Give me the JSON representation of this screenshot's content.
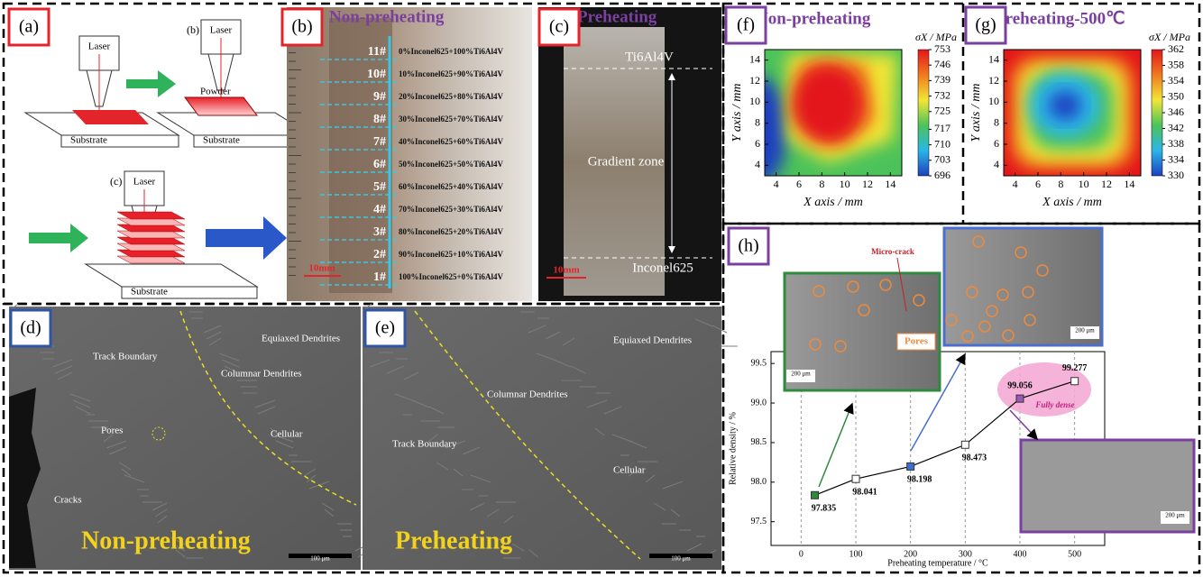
{
  "figure": {
    "a": {
      "label": "(a)",
      "step_b": "(b)",
      "step_c": "(c)",
      "laser": [
        "Laser",
        "Laser",
        "Laser"
      ],
      "powder": "Powder",
      "substrate": [
        "Substrate",
        "Substrate",
        "Substrate"
      ]
    },
    "b": {
      "label": "(b)",
      "title": "Non-preheating",
      "scale": "10mm",
      "layers": [
        {
          "id": "11#",
          "composition": "0%Inconel625+100%Ti6Al4V"
        },
        {
          "id": "10#",
          "composition": "10%Inconel625+90%Ti6Al4V"
        },
        {
          "id": "9#",
          "composition": "20%Inconel625+80%Ti6Al4V"
        },
        {
          "id": "8#",
          "composition": "30%Inconel625+70%Ti6Al4V"
        },
        {
          "id": "7#",
          "composition": "40%Inconel625+60%Ti6Al4V"
        },
        {
          "id": "6#",
          "composition": "50%Inconel625+50%Ti6Al4V"
        },
        {
          "id": "5#",
          "composition": "60%Inconel625+40%Ti6Al4V"
        },
        {
          "id": "4#",
          "composition": "70%Inconel625+30%Ti6Al4V"
        },
        {
          "id": "3#",
          "composition": "80%Inconel625+20%Ti6Al4V"
        },
        {
          "id": "2#",
          "composition": "90%Inconel625+10%Ti6Al4V"
        },
        {
          "id": "1#",
          "composition": "100%Inconel625+0%Ti6Al4V"
        }
      ]
    },
    "c": {
      "label": "(c)",
      "title": "Preheating",
      "top": "Ti6Al4V",
      "middle": "Gradient zone",
      "bottom": "Inconel625",
      "scale": "10mm"
    },
    "d": {
      "label": "(d)",
      "caption": "Non-preheating",
      "scale": "100 μm",
      "annotations": [
        "Equiaxed Dendrites",
        "Track Boundary",
        "Columnar Dendrites",
        "Pores",
        "Cellular",
        "Cracks"
      ]
    },
    "e": {
      "label": "(e)",
      "caption": "Preheating",
      "scale": "100 μm",
      "annotations": [
        "Equiaxed Dendrites",
        "Columnar Dendrites",
        "Track Boundary",
        "Cellular"
      ]
    }
  },
  "chart_data": [
    {
      "type": "heatmap",
      "label": "(f)",
      "title": "Non-preheating",
      "xlabel": "X axis / mm",
      "ylabel": "Y axis / mm",
      "colorbar_label": "σX / MPa",
      "xlim": [
        3,
        15
      ],
      "ylim": [
        3,
        15
      ],
      "xticks": [
        4,
        6,
        8,
        10,
        12,
        14
      ],
      "yticks": [
        4,
        6,
        8,
        10,
        12,
        14
      ],
      "clim": [
        696,
        753
      ],
      "cticks": [
        696,
        703,
        710,
        717,
        725,
        732,
        739,
        746,
        753
      ],
      "colors": [
        "#1f3fbf",
        "#29b6e8",
        "#4cc35a",
        "#f2e636",
        "#f07a1e",
        "#e3161b"
      ]
    },
    {
      "type": "heatmap",
      "label": "(g)",
      "title": "Preheating-500℃",
      "xlabel": "X axis / mm",
      "ylabel": "Y axis / mm",
      "colorbar_label": "σX / MPa",
      "xlim": [
        3,
        15
      ],
      "ylim": [
        3,
        15
      ],
      "xticks": [
        4,
        6,
        8,
        10,
        12,
        14
      ],
      "yticks": [
        4,
        6,
        8,
        10,
        12,
        14
      ],
      "clim": [
        330,
        362
      ],
      "cticks": [
        330,
        334,
        338,
        342,
        346,
        350,
        354,
        358,
        362
      ],
      "colors": [
        "#1f3fbf",
        "#29b6e8",
        "#4cc35a",
        "#f2e636",
        "#f07a1e",
        "#e3161b"
      ]
    },
    {
      "type": "line",
      "label": "(h)",
      "xlabel": "Preheating temperature / °C",
      "ylabel": "Relative density / %",
      "x": [
        25,
        100,
        200,
        300,
        400,
        500
      ],
      "series": [
        {
          "name": null,
          "color": "#000000",
          "values": [
            97.835,
            98.041,
            98.198,
            98.473,
            99.056,
            99.277
          ],
          "marker_colors": [
            "#2e8b3e",
            "#ffffff",
            "#3b6fd1",
            "#ffffff",
            "#9b59b6",
            "#ffffff"
          ]
        }
      ],
      "xlim": [
        -55,
        555
      ],
      "ylim": [
        97.2,
        99.65
      ],
      "xticks": [
        0,
        100,
        200,
        300,
        400,
        500
      ],
      "yticks": [
        97.5,
        {
          "value": 98,
          "label": "98.0"
        },
        98.5,
        {
          "value": 99,
          "label": "99.0"
        },
        99.5
      ],
      "grid": true,
      "annotations": [
        "Micro-crack",
        "Pores",
        "Fully dense"
      ],
      "scales": [
        "200 μm",
        "200 μm",
        "200 μm"
      ]
    }
  ]
}
